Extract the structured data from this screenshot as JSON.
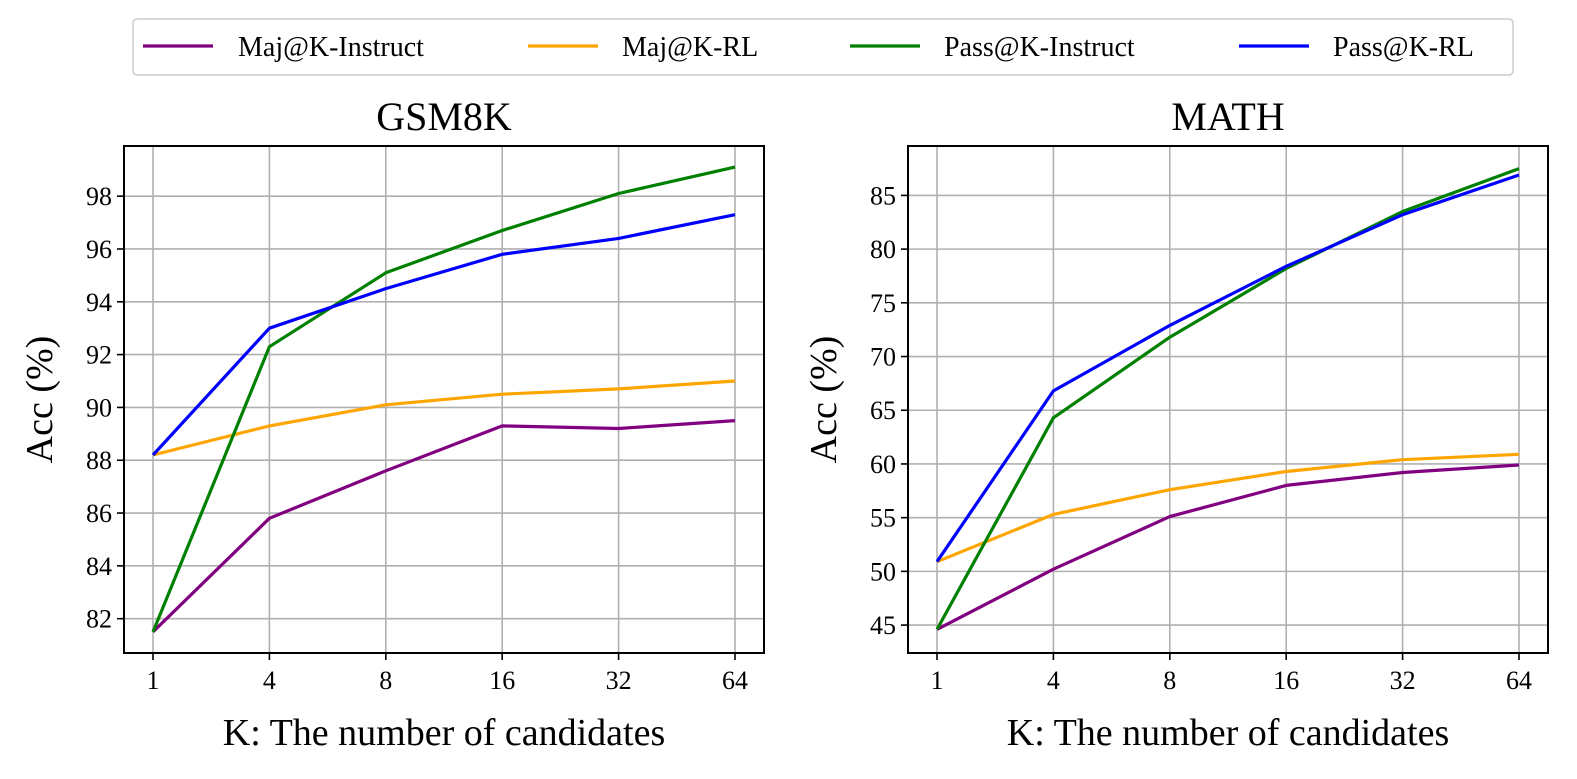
{
  "legend": {
    "placement": "top-center",
    "entries": [
      {
        "label": "Maj@K-Instruct",
        "color": "#800080"
      },
      {
        "label": "Maj@K-RL",
        "color": "#FFA500"
      },
      {
        "label": "Pass@K-Instruct",
        "color": "#008000"
      },
      {
        "label": "Pass@K-RL",
        "color": "#0000FF"
      }
    ]
  },
  "chart_data": [
    {
      "type": "line",
      "title": "GSM8K",
      "xlabel": "K: The number of candidates",
      "ylabel": "Acc (%)",
      "categories": [
        "1",
        "4",
        "8",
        "16",
        "32",
        "64"
      ],
      "ylim": [
        80.7,
        99.9
      ],
      "yticks": [
        82,
        84,
        86,
        88,
        90,
        92,
        94,
        96,
        98
      ],
      "grid": true,
      "series": [
        {
          "name": "Maj@K-Instruct",
          "color": "#800080",
          "values": [
            81.5,
            85.8,
            87.6,
            89.3,
            89.2,
            89.5
          ]
        },
        {
          "name": "Maj@K-RL",
          "color": "#FFA500",
          "values": [
            88.2,
            89.3,
            90.1,
            90.5,
            90.7,
            91.0
          ]
        },
        {
          "name": "Pass@K-Instruct",
          "color": "#008000",
          "values": [
            81.5,
            92.3,
            95.1,
            96.7,
            98.1,
            99.1
          ]
        },
        {
          "name": "Pass@K-RL",
          "color": "#0000FF",
          "values": [
            88.2,
            93.0,
            94.5,
            95.8,
            96.4,
            97.3
          ]
        }
      ]
    },
    {
      "type": "line",
      "title": "MATH",
      "xlabel": "K: The number of candidates",
      "ylabel": "Acc (%)",
      "categories": [
        "1",
        "4",
        "8",
        "16",
        "32",
        "64"
      ],
      "ylim": [
        42.4,
        89.6
      ],
      "yticks": [
        45,
        50,
        55,
        60,
        65,
        70,
        75,
        80,
        85
      ],
      "grid": true,
      "series": [
        {
          "name": "Maj@K-Instruct",
          "color": "#800080",
          "values": [
            44.6,
            50.2,
            55.1,
            58.0,
            59.2,
            59.9
          ]
        },
        {
          "name": "Maj@K-RL",
          "color": "#FFA500",
          "values": [
            50.9,
            55.3,
            57.6,
            59.3,
            60.4,
            60.9
          ]
        },
        {
          "name": "Pass@K-Instruct",
          "color": "#008000",
          "values": [
            44.6,
            64.3,
            71.8,
            78.2,
            83.5,
            87.5
          ]
        },
        {
          "name": "Pass@K-RL",
          "color": "#0000FF",
          "values": [
            50.9,
            66.8,
            72.9,
            78.4,
            83.2,
            86.9
          ]
        }
      ]
    }
  ]
}
